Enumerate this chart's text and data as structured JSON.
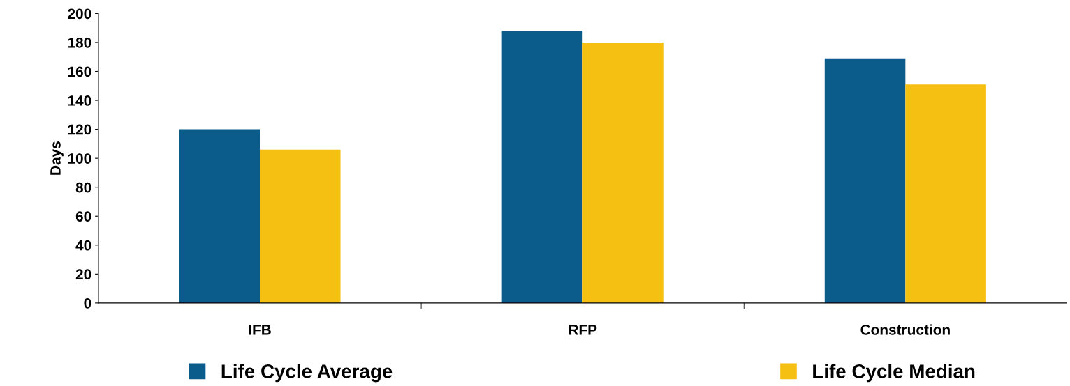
{
  "chart_data": {
    "type": "bar",
    "ylabel": "Days",
    "categories": [
      "IFB",
      "RFP",
      "Construction"
    ],
    "series": [
      {
        "name": "Life Cycle Average",
        "color": "#0b5c8a",
        "values": [
          120,
          188,
          169
        ]
      },
      {
        "name": "Life Cycle Median",
        "color": "#f6c013",
        "values": [
          106,
          180,
          151
        ]
      }
    ],
    "ylim": [
      0,
      200
    ],
    "yticks": [
      0,
      20,
      40,
      60,
      80,
      100,
      120,
      140,
      160,
      180,
      200
    ],
    "grid": false,
    "legend": "bottom"
  }
}
